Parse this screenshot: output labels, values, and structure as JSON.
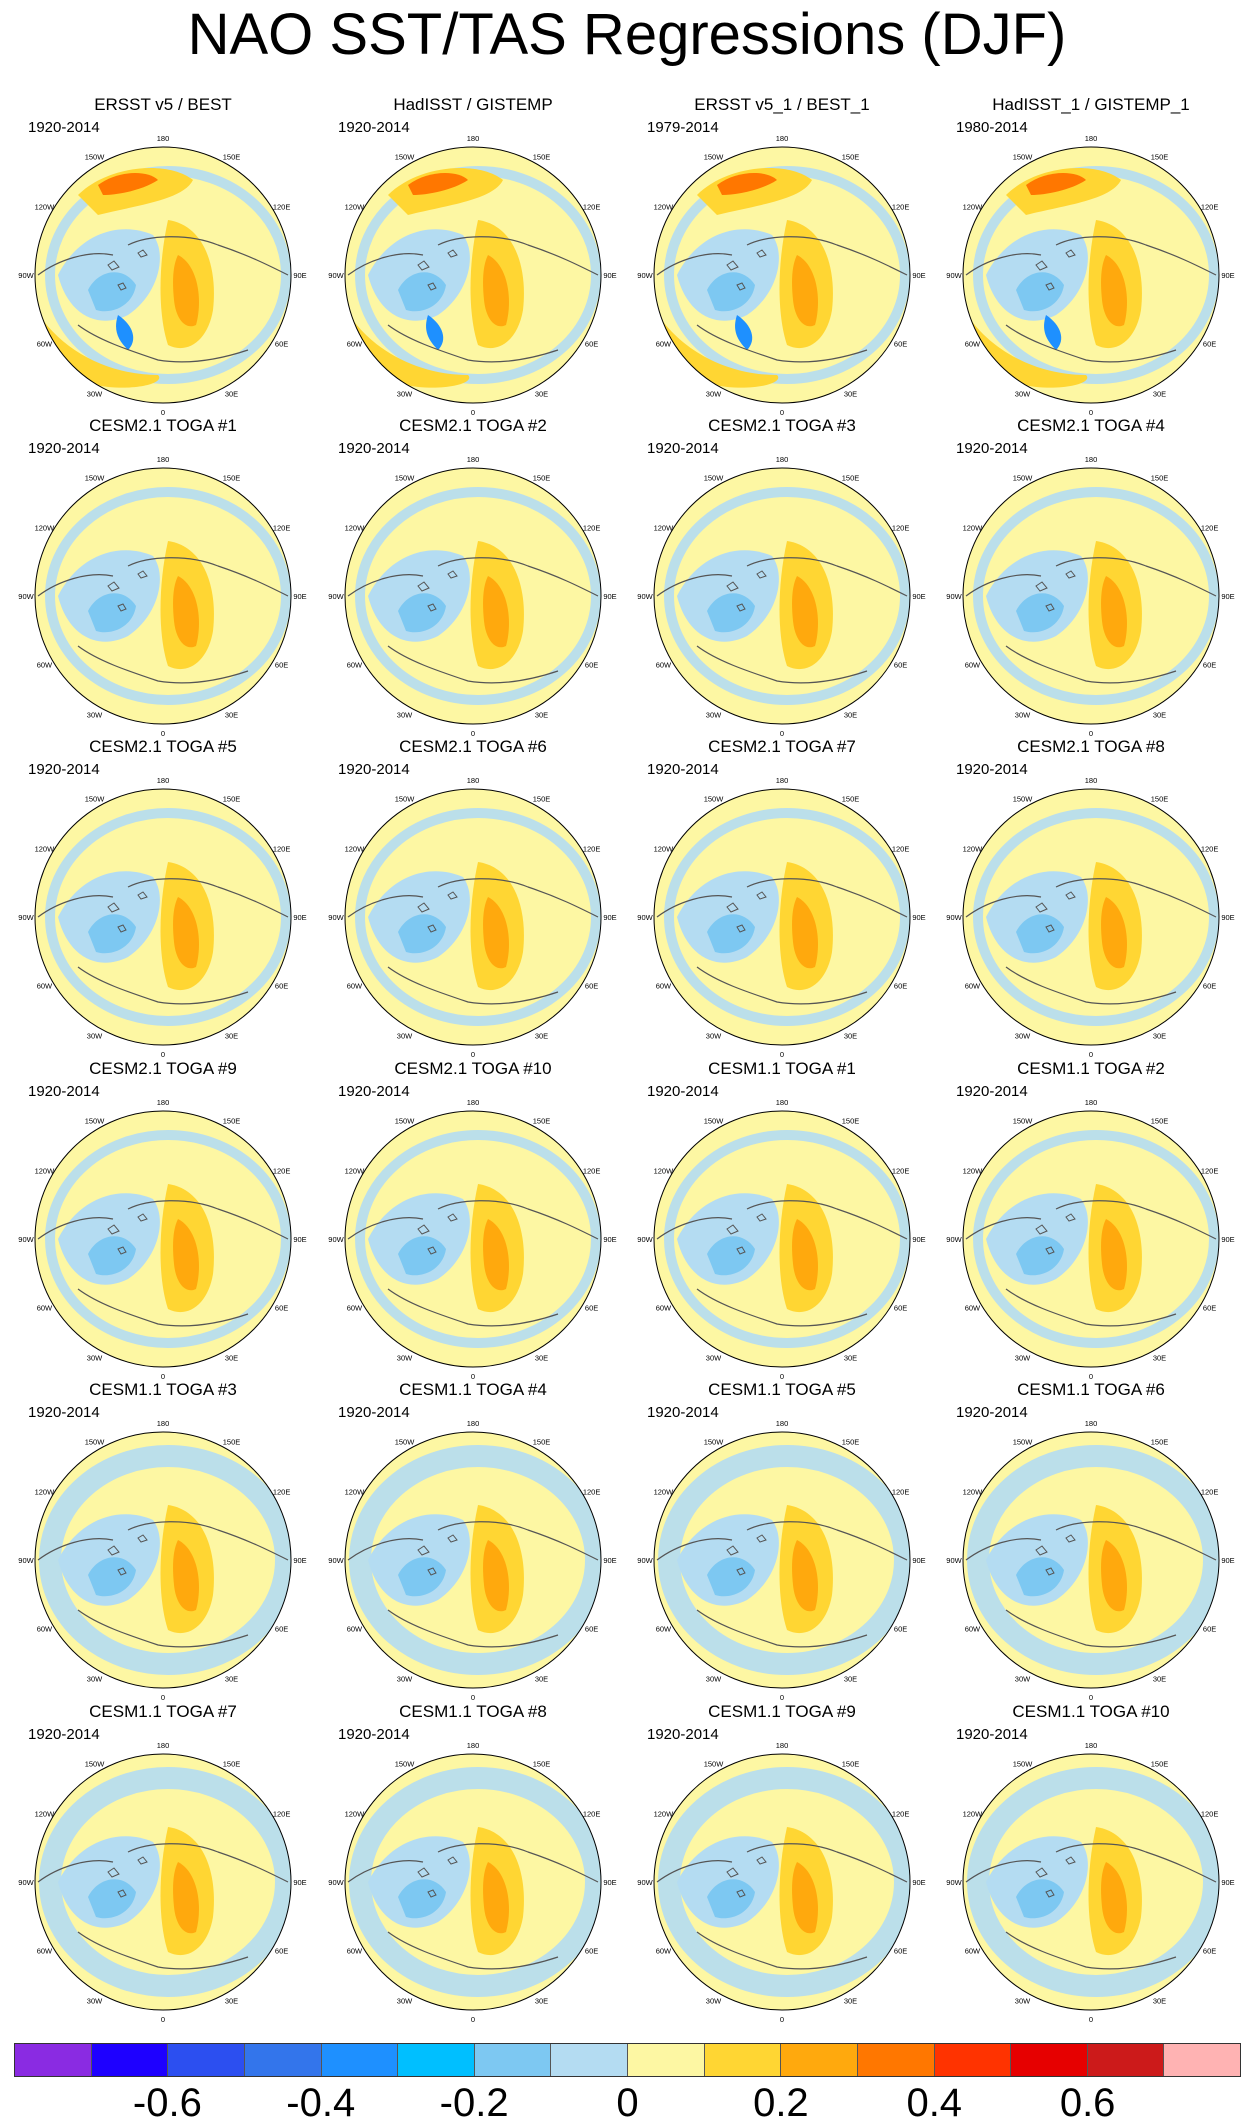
{
  "title": "NAO SST/TAS Regressions (DJF)",
  "lon_labels": [
    "180",
    "150E",
    "120E",
    "90E",
    "60E",
    "30E",
    "0",
    "30W",
    "60W",
    "90W",
    "120W",
    "150W"
  ],
  "panels": [
    {
      "title": "ERSST v5 / BEST",
      "period": "1920-2014"
    },
    {
      "title": "HadISST / GISTEMP",
      "period": "1920-2014"
    },
    {
      "title": "ERSST v5_1 / BEST_1",
      "period": "1979-2014"
    },
    {
      "title": "HadISST_1 / GISTEMP_1",
      "period": "1980-2014"
    },
    {
      "title": "CESM2.1 TOGA #1",
      "period": "1920-2014"
    },
    {
      "title": "CESM2.1 TOGA #2",
      "period": "1920-2014"
    },
    {
      "title": "CESM2.1 TOGA #3",
      "period": "1920-2014"
    },
    {
      "title": "CESM2.1 TOGA #4",
      "period": "1920-2014"
    },
    {
      "title": "CESM2.1 TOGA #5",
      "period": "1920-2014"
    },
    {
      "title": "CESM2.1 TOGA #6",
      "period": "1920-2014"
    },
    {
      "title": "CESM2.1 TOGA #7",
      "period": "1920-2014"
    },
    {
      "title": "CESM2.1 TOGA #8",
      "period": "1920-2014"
    },
    {
      "title": "CESM2.1 TOGA #9",
      "period": "1920-2014"
    },
    {
      "title": "CESM2.1 TOGA #10",
      "period": "1920-2014"
    },
    {
      "title": "CESM1.1 TOGA #1",
      "period": "1920-2014"
    },
    {
      "title": "CESM1.1 TOGA #2",
      "period": "1920-2014"
    },
    {
      "title": "CESM1.1 TOGA #3",
      "period": "1920-2014"
    },
    {
      "title": "CESM1.1 TOGA #4",
      "period": "1920-2014"
    },
    {
      "title": "CESM1.1 TOGA #5",
      "period": "1920-2014"
    },
    {
      "title": "CESM1.1 TOGA #6",
      "period": "1920-2014"
    },
    {
      "title": "CESM1.1 TOGA #7",
      "period": "1920-2014"
    },
    {
      "title": "CESM1.1 TOGA #8",
      "period": "1920-2014"
    },
    {
      "title": "CESM1.1 TOGA #9",
      "period": "1920-2014"
    },
    {
      "title": "CESM1.1 TOGA #10",
      "period": "1920-2014"
    }
  ],
  "colorbar": {
    "colors": [
      "#8a2be2",
      "#1e00ff",
      "#2c4ff0",
      "#3375eb",
      "#1e90ff",
      "#00bfff",
      "#7dc8f2",
      "#b4dcf2",
      "#fdf7a3",
      "#ffd633",
      "#ffa90d",
      "#ff7700",
      "#ff3300",
      "#e60000",
      "#cc1a1a",
      "#ffb3b3"
    ],
    "tick_values": [
      -0.6,
      -0.4,
      -0.2,
      0,
      0.2,
      0.4,
      0.6
    ],
    "tick_labels": [
      "-0.6",
      "-0.4",
      "-0.2",
      "0",
      "0.2",
      "0.4",
      "0.6"
    ],
    "range": [
      -0.8,
      0.8
    ]
  }
}
